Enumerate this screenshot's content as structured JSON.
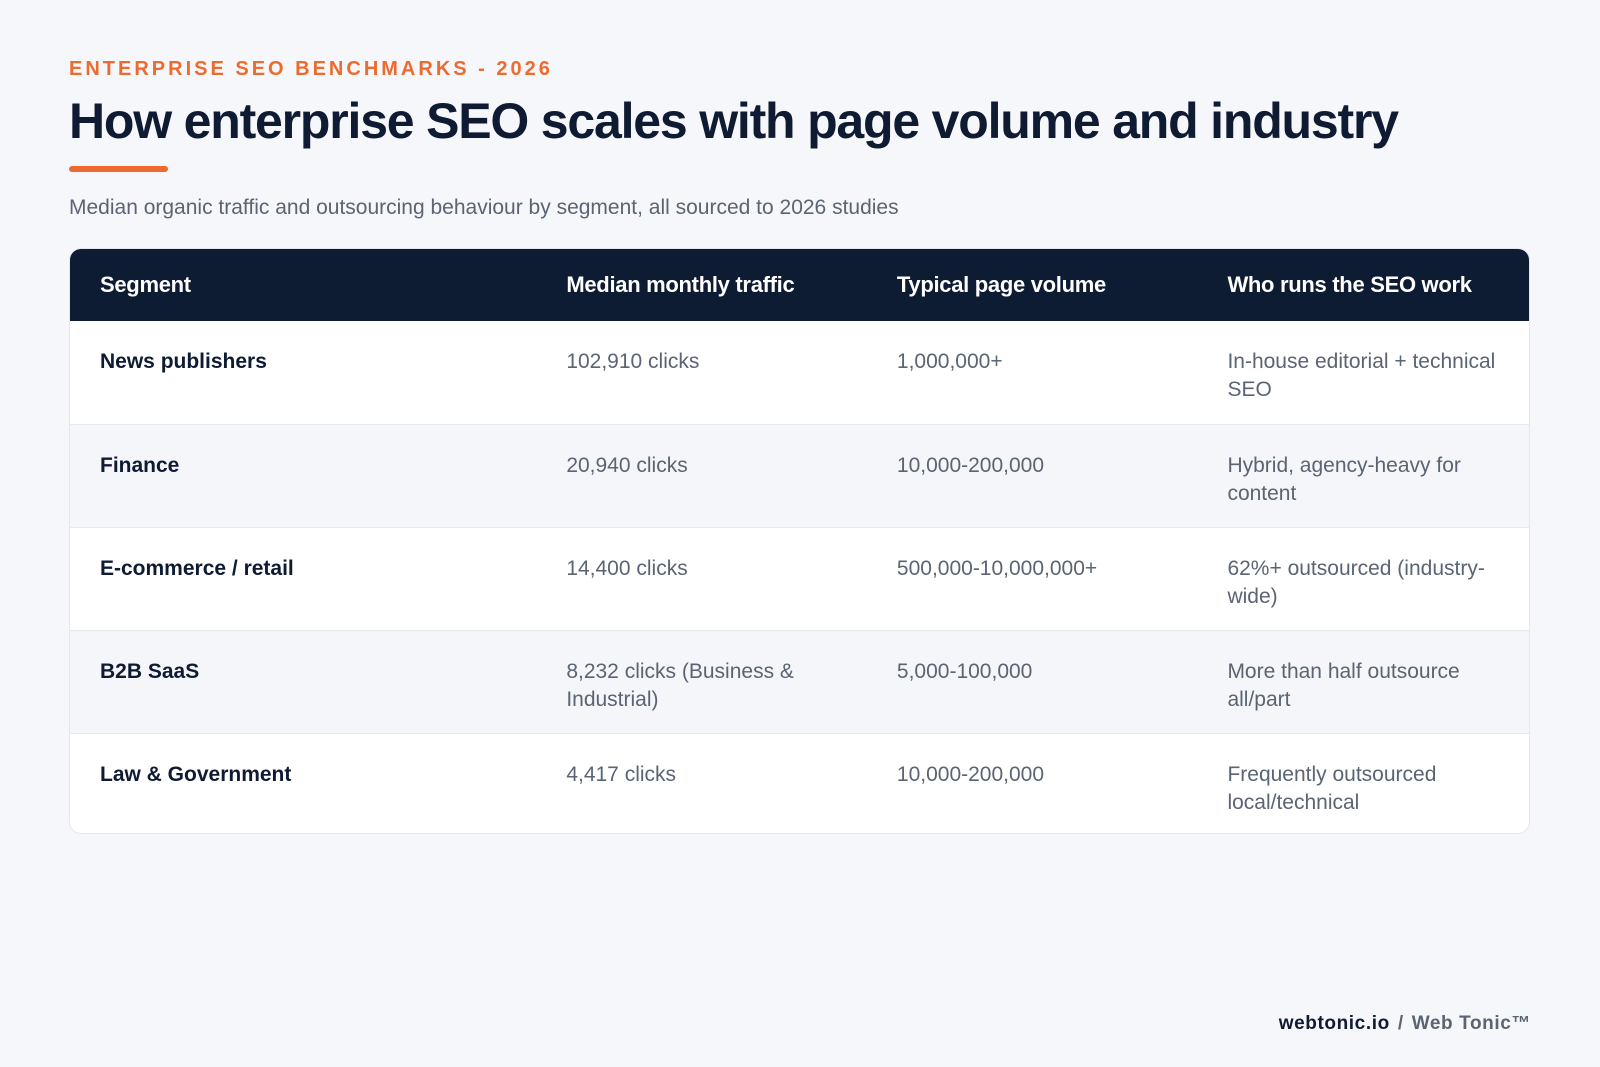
{
  "header": {
    "eyebrow": "ENTERPRISE SEO BENCHMARKS - 2026",
    "title": "How enterprise SEO scales with page volume and industry",
    "subtitle": "Median organic traffic and outsourcing behaviour by segment, all sourced to 2026 studies"
  },
  "colors": {
    "accent": "#ee6b2f",
    "header_bg": "#0d1b33",
    "page_bg": "#f6f7fa"
  },
  "table": {
    "columns": [
      "Segment",
      "Median monthly traffic",
      "Typical page volume",
      "Who runs the SEO work"
    ],
    "rows": [
      {
        "segment": "News publishers",
        "traffic": "102,910 clicks",
        "pages": "1,000,000+",
        "who": "In-house editorial + technical SEO"
      },
      {
        "segment": "Finance",
        "traffic": "20,940 clicks",
        "pages": "10,000-200,000",
        "who": "Hybrid, agency-heavy for content"
      },
      {
        "segment": "E-commerce / retail",
        "traffic": "14,400 clicks",
        "pages": "500,000-10,000,000+",
        "who": "62%+ outsourced (industry-wide)"
      },
      {
        "segment": "B2B SaaS",
        "traffic": "8,232 clicks (Business & Industrial)",
        "pages": "5,000-100,000",
        "who": "More than half outsource all/part"
      },
      {
        "segment": "Law & Government",
        "traffic": "4,417 clicks",
        "pages": "10,000-200,000",
        "who": "Frequently outsourced local/technical"
      }
    ]
  },
  "footer": {
    "domain": "webtonic.io",
    "separator": "/",
    "brand": "Web Tonic™"
  }
}
